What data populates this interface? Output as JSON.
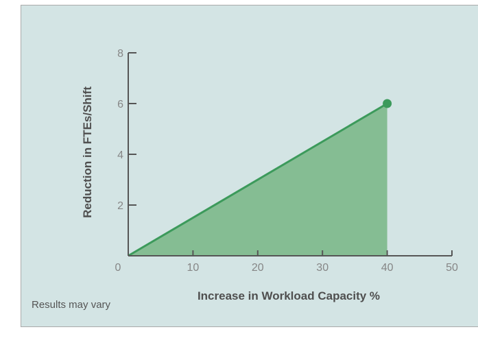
{
  "chart_data": {
    "type": "area",
    "x": [
      0,
      40
    ],
    "y": [
      0,
      6
    ],
    "xlabel": "Increase in Workload Capacity %",
    "ylabel": "Reduction in FTEs/Shift",
    "xlim": [
      0,
      50
    ],
    "ylim": [
      0,
      8
    ],
    "xticks": [
      10,
      20,
      30,
      40,
      50
    ],
    "yticks": [
      2,
      4,
      6,
      8
    ],
    "origin_label": "0",
    "grid": false,
    "end_marker": true
  },
  "footnote": "Results may vary",
  "colors": {
    "background": "#d3e4e4",
    "fill": "#85bd93",
    "line": "#3c9a5b",
    "axis": "#555555"
  }
}
